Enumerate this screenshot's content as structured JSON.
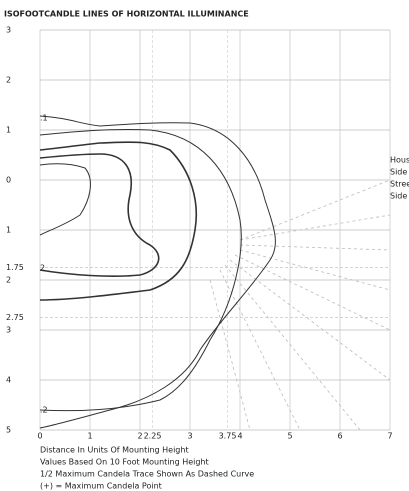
{
  "chart_data": {
    "type": "contour",
    "title": "ISOFOOTCANDLE LINES OF HORIZONTAL ILLUMINANCE",
    "xlim": [
      0,
      7
    ],
    "ylim": [
      -3,
      5
    ],
    "xticks": [
      0,
      1,
      2,
      2.25,
      3,
      3.75,
      4,
      5,
      6,
      7
    ],
    "yticks": [
      {
        "value": -3,
        "label": "3"
      },
      {
        "value": -2,
        "label": "2"
      },
      {
        "value": -1,
        "label": "1"
      },
      0,
      1,
      1.75,
      2,
      2.75,
      3,
      4,
      5
    ],
    "side_labels": [
      "Hous",
      "Side",
      "Stree",
      "Side"
    ],
    "contour_labels": [
      ".1",
      "2",
      ".2"
    ],
    "notes": [
      "Distance In Units Of Mounting Height",
      "Values Based On 10 Foot Mounting Height",
      "1/2 Maximum Candela Trace Shown As Dashed Curve",
      "(+) = Maximum Candela Point"
    ],
    "grid": true
  }
}
